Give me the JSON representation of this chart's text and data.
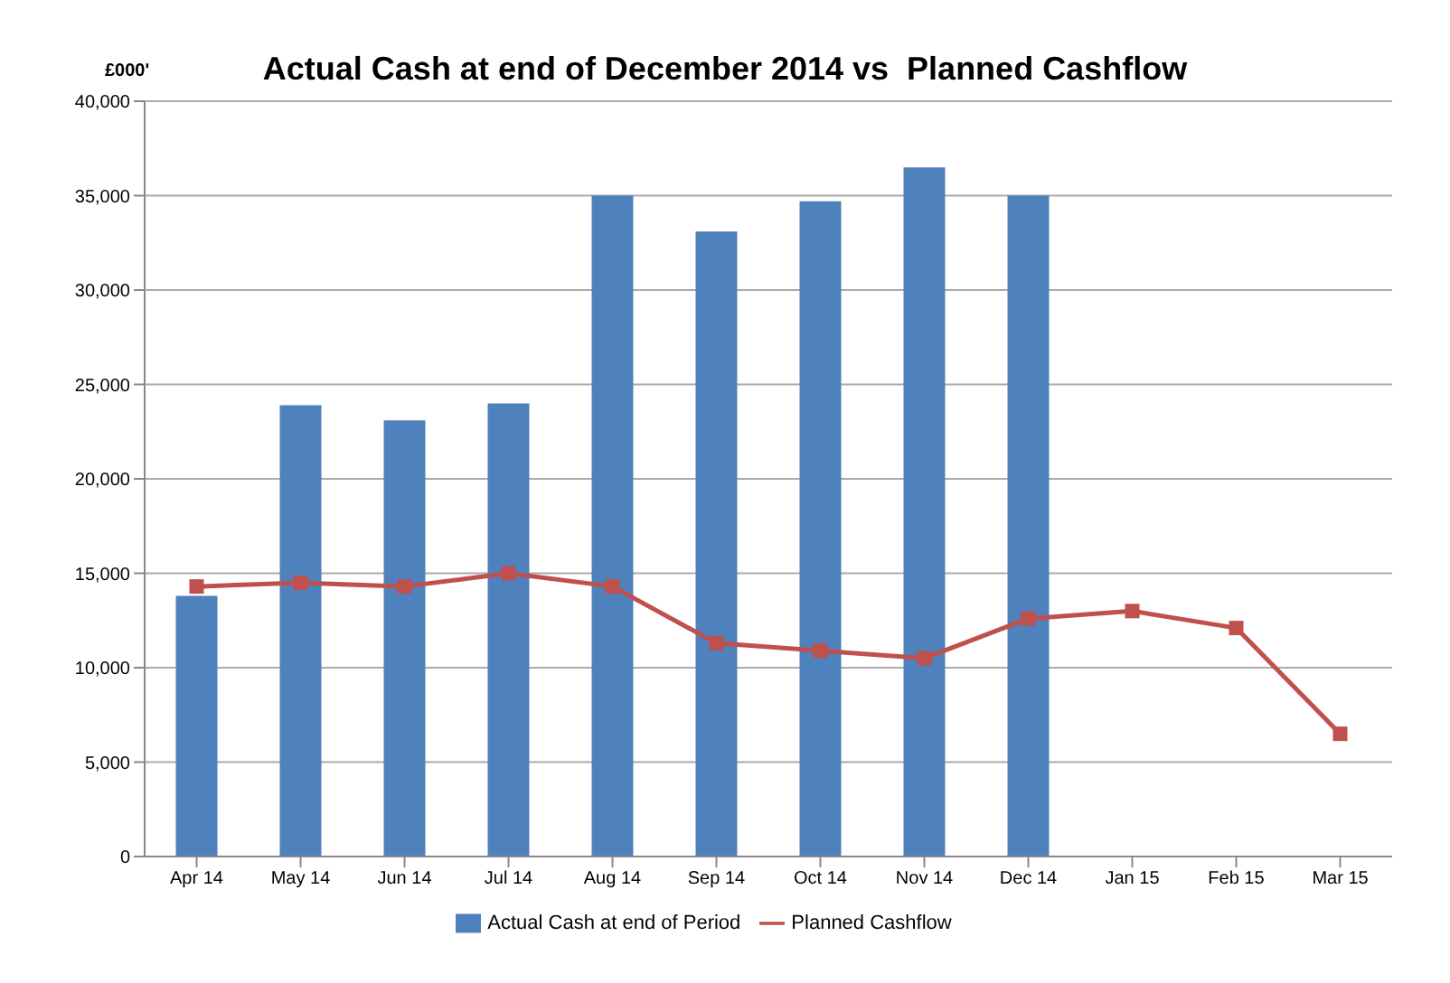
{
  "chart_data": {
    "type": "bar",
    "title": "Actual Cash at end of December 2014 vs  Planned Cashflow",
    "ylabel": "£000'",
    "categories": [
      "Apr 14",
      "May 14",
      "Jun 14",
      "Jul 14",
      "Aug 14",
      "Sep 14",
      "Oct 14",
      "Nov 14",
      "Dec 14",
      "Jan 15",
      "Feb 15",
      "Mar 15"
    ],
    "series": [
      {
        "name": "Actual Cash at end of Period",
        "color": "#4f81bd",
        "values": [
          13800,
          23900,
          23100,
          24000,
          35000,
          33100,
          34700,
          36500,
          35000,
          null,
          null,
          null
        ]
      },
      {
        "name": "Planned Cashflow",
        "type": "line",
        "color": "#c0504d",
        "marker": "square",
        "values": [
          14300,
          14500,
          14300,
          15000,
          14300,
          11300,
          10900,
          10500,
          12600,
          13000,
          12100,
          6500
        ]
      }
    ],
    "ylim": [
      0,
      40000
    ],
    "yticks": [
      0,
      {
        "value": 5000,
        "label": "5,000"
      },
      {
        "value": 10000,
        "label": "10,000"
      },
      {
        "value": 15000,
        "label": "15,000"
      },
      {
        "value": 20000,
        "label": "20,000"
      },
      {
        "value": 25000,
        "label": "25,000"
      },
      {
        "value": 30000,
        "label": "30,000"
      },
      {
        "value": 35000,
        "label": "35,000"
      },
      {
        "value": 40000,
        "label": "40,000"
      }
    ],
    "grid": "y",
    "legend": "bottom"
  }
}
